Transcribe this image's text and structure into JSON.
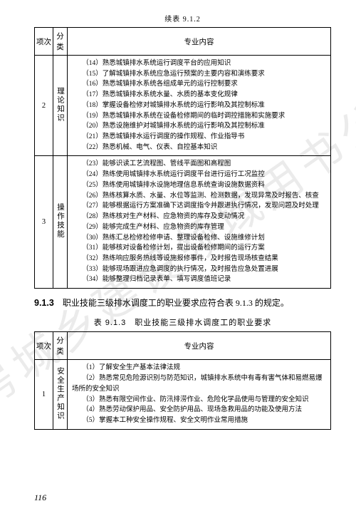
{
  "watermark": "住房城乡建设领域用书公开",
  "contLabel": "续表 9.1.2",
  "headers": {
    "h1": "项次",
    "h2": "分类",
    "h3": "专业内容"
  },
  "tableA": {
    "rows": [
      {
        "num": "2",
        "cat": "理论知识",
        "items": [
          "（14）熟悉城镇排水系统运行调度平台的应用知识",
          "（15）了解城镇排水系统应急运行预案的主要内容和演练要求",
          "（16）熟悉城镇排水系统各组成单元的运行控制要求",
          "（17）熟悉城镇排水系统水量、水质的基本变化规律",
          "（18）掌握设备检修对城镇排水系统的运行影响及其控制标准",
          "（19）熟悉城镇排水系统在设备检修期间的临时调控措施和实施要求",
          "（20）熟悉设施维护对城镇排水系统的运行影响及其控制标准",
          "（21）熟悉城镇排水运行调度的操作规程、作业指导书",
          "（22）熟悉机械、电气、仪表、自控基本知识"
        ]
      },
      {
        "num": "3",
        "cat": "操作技能",
        "items": [
          "（23）能够识读工艺流程图、管线平面图和高程图",
          "（24）熟练使用城镇排水系统运行调度平台进行运行工况监控",
          "（25）熟练使用城镇排水设施地理信息系统查询设施数据资料",
          "（26）熟练核算水质、水量、水位等监测、检测数据，发现异常及时报告、核查",
          "（27）能够根据运行方案准确下达调度指令并跟进执行情况，发现问题及时处理",
          "（28）熟练核对生产材料、应急物资的库存及变动情况",
          "（29）能够完成生产材料、应急物资的库存管理",
          "（30）熟练汇总检修检修申请、整理设备检修、设施维修计划",
          "（31）能够核对设备检修计划，提出设备检修期间的运行方案",
          "（32）熟练响应服务热线等设施报修事件，及时报告现场核查结果",
          "（33）能够现场跟进应急调度的执行情况，及时报告应急处置进展",
          "（34）能够整理归档记录表单、填写调度值班记录"
        ]
      }
    ]
  },
  "section": {
    "num": "9.1.3",
    "text": "　职业技能三级排水调度工的职业要求应符合表 9.1.3 的规定。"
  },
  "tableBTitle": "表 9.1.3　职业技能三级排水调度工的职业要求",
  "tableB": {
    "rows": [
      {
        "num": "1",
        "cat": "安全生产知识",
        "items": [
          "（1）了解安全生产基本法律法规",
          "（2）熟悉常见危险源识别与防范知识，城镇排水系统中有毒有害气体和易燃易爆场所的安全知识",
          "（3）熟悉有限空间作业、防汛排涝作业、危险化学品使用与管理的安全知识",
          "（4）熟悉劳动保护用品、安全防护用品、现场急救用品的功能及使用方法",
          "（5）掌握本工种安全操作规程、安全文明作业常用措施"
        ]
      }
    ]
  },
  "pageNumber": "116"
}
